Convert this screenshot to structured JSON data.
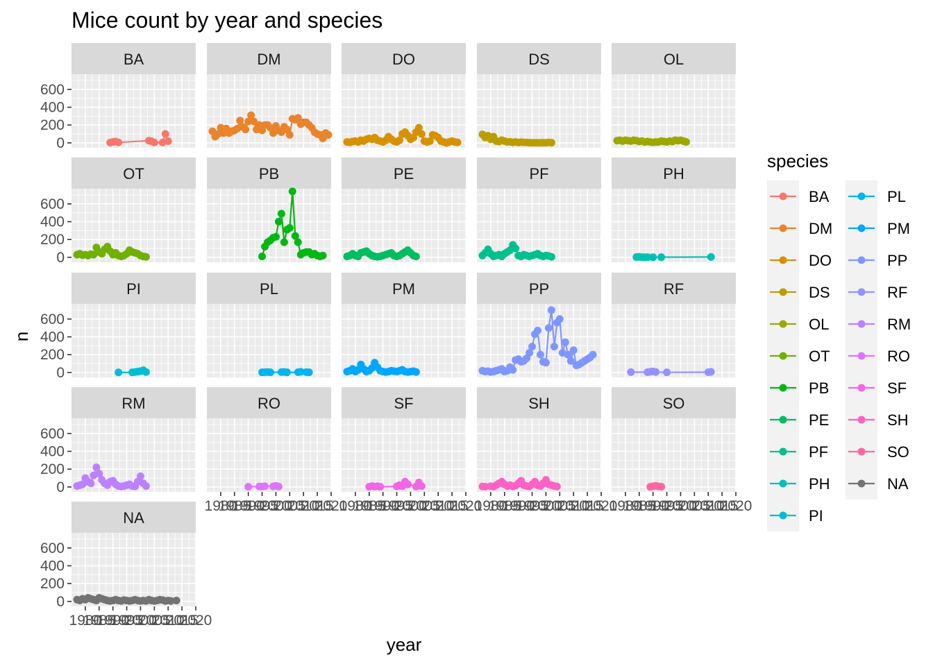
{
  "chart_data": {
    "type": "line",
    "title": "Mice count by year and species",
    "xlabel": "year",
    "ylabel": "n",
    "ylim": [
      -55,
      770
    ],
    "xlim": [
      1975,
      2020
    ],
    "yticks": [
      "0",
      "200",
      "400",
      "600"
    ],
    "xticks": [
      "1980",
      "1985",
      "1990",
      "1995",
      "2000",
      "2005",
      "2010",
      "2015",
      "2020"
    ],
    "legend": {
      "title": "species",
      "position": "right",
      "columns": 2
    },
    "colors": {
      "BA": "#F8766D",
      "DM": "#E9842C",
      "DO": "#D69100",
      "DS": "#BC9D00",
      "OL": "#9CA700",
      "OT": "#6FB000",
      "PB": "#00B813",
      "PE": "#00BD61",
      "PF": "#00C08E",
      "PH": "#00C0B4",
      "PI": "#00BDD4",
      "PL": "#00B5EE",
      "PM": "#00A7FF",
      "PP": "#7F96FF",
      "RF": "#9591FF",
      "RM": "#BC81FF",
      "RO": "#DE73FF",
      "SF": "#F265E7",
      "SH": "#FF61C7",
      "SO": "#FF65A4",
      "NA": "#737373"
    },
    "series": [
      {
        "name": "BA",
        "x": [
          1989,
          1990,
          1991,
          1992,
          2003,
          2004,
          2005,
          2008,
          2009,
          2010
        ],
        "y": [
          3,
          10,
          15,
          5,
          25,
          18,
          4,
          4,
          100,
          19
        ]
      },
      {
        "name": "DM",
        "x": [
          1977,
          1978,
          1979,
          1980,
          1981,
          1982,
          1983,
          1984,
          1985,
          1986,
          1987,
          1988,
          1989,
          1990,
          1991,
          1992,
          1993,
          1994,
          1995,
          1996,
          1997,
          1998,
          1999,
          2000,
          2001,
          2002,
          2003,
          2004,
          2005,
          2006,
          2007,
          2008,
          2009,
          2010,
          2011,
          2012,
          2013,
          2014,
          2015,
          2016,
          2017,
          2018,
          2019
        ],
        "y": [
          130,
          70,
          100,
          170,
          110,
          160,
          110,
          130,
          140,
          160,
          250,
          180,
          150,
          240,
          310,
          240,
          150,
          200,
          140,
          200,
          200,
          170,
          110,
          190,
          140,
          120,
          180,
          150,
          90,
          270,
          260,
          280,
          210,
          230,
          230,
          200,
          170,
          120,
          100,
          90,
          50,
          110,
          90
        ]
      },
      {
        "name": "DO",
        "x": [
          1977,
          1978,
          1979,
          1980,
          1981,
          1982,
          1983,
          1984,
          1985,
          1986,
          1987,
          1988,
          1989,
          1990,
          1991,
          1992,
          1993,
          1994,
          1995,
          1996,
          1997,
          1998,
          1999,
          2000,
          2001,
          2002,
          2003,
          2004,
          2005,
          2006,
          2007,
          2008,
          2009,
          2010,
          2011,
          2012,
          2013,
          2014,
          2015,
          2016,
          2017
        ],
        "y": [
          10,
          5,
          15,
          20,
          10,
          30,
          20,
          40,
          50,
          40,
          60,
          30,
          20,
          10,
          30,
          70,
          40,
          20,
          10,
          30,
          100,
          120,
          80,
          40,
          60,
          120,
          170,
          100,
          20,
          10,
          20,
          90,
          80,
          60,
          20,
          10,
          0,
          10,
          20,
          10,
          5
        ]
      },
      {
        "name": "DS",
        "x": [
          1977,
          1978,
          1979,
          1980,
          1981,
          1982,
          1983,
          1984,
          1985,
          1986,
          1987,
          1988,
          1989,
          1990,
          1991,
          1992,
          1993,
          1994,
          1995,
          1996,
          1997,
          1998,
          1999,
          2000,
          2001,
          2002
        ],
        "y": [
          95,
          60,
          80,
          40,
          70,
          20,
          15,
          30,
          20,
          10,
          12,
          5,
          10,
          3,
          8,
          5,
          4,
          2,
          1,
          1,
          1,
          1,
          2,
          1,
          5,
          2
        ]
      },
      {
        "name": "OL",
        "x": [
          1977,
          1978,
          1979,
          1980,
          1981,
          1982,
          1983,
          1984,
          1985,
          1986,
          1987,
          1988,
          1989,
          1990,
          1991,
          1992,
          1993,
          1994,
          1995,
          1996,
          1997,
          1998,
          1999,
          2000,
          2001,
          2002
        ],
        "y": [
          25,
          30,
          20,
          30,
          25,
          20,
          30,
          25,
          15,
          20,
          10,
          15,
          10,
          5,
          10,
          10,
          20,
          15,
          10,
          20,
          15,
          30,
          25,
          30,
          20,
          10
        ]
      },
      {
        "name": "OT",
        "x": [
          1977,
          1978,
          1979,
          1980,
          1981,
          1982,
          1983,
          1984,
          1985,
          1986,
          1987,
          1988,
          1989,
          1990,
          1991,
          1992,
          1993,
          1994,
          1995,
          1996,
          1997,
          1998,
          1999,
          2000,
          2001,
          2002
        ],
        "y": [
          30,
          40,
          25,
          30,
          20,
          35,
          30,
          110,
          60,
          40,
          90,
          120,
          70,
          30,
          50,
          20,
          10,
          20,
          40,
          80,
          60,
          50,
          40,
          20,
          10,
          5
        ]
      },
      {
        "name": "PB",
        "x": [
          1995,
          1996,
          1997,
          1998,
          1999,
          2000,
          2001,
          2002,
          2003,
          2004,
          2005,
          2006,
          2007,
          2008,
          2009,
          2010,
          2011,
          2012,
          2013,
          2014,
          2015,
          2016,
          2017
        ],
        "y": [
          10,
          120,
          170,
          190,
          220,
          230,
          400,
          490,
          170,
          310,
          330,
          740,
          240,
          170,
          30,
          50,
          60,
          60,
          30,
          40,
          20,
          10,
          20
        ]
      },
      {
        "name": "PE",
        "x": [
          1977,
          1978,
          1979,
          1980,
          1981,
          1982,
          1983,
          1984,
          1985,
          1986,
          1987,
          1988,
          1989,
          1990,
          1991,
          1992,
          1993,
          1994,
          1995,
          1996,
          1997,
          1998,
          1999,
          2000,
          2001,
          2002
        ],
        "y": [
          10,
          20,
          40,
          20,
          10,
          50,
          60,
          70,
          40,
          20,
          10,
          5,
          10,
          20,
          30,
          40,
          50,
          20,
          10,
          20,
          40,
          60,
          80,
          50,
          20,
          10
        ]
      },
      {
        "name": "PF",
        "x": [
          1977,
          1978,
          1979,
          1980,
          1981,
          1982,
          1983,
          1984,
          1985,
          1986,
          1987,
          1988,
          1989,
          1990,
          1991,
          1992,
          1993,
          1994,
          1995,
          1996,
          1997,
          1998,
          1999,
          2000,
          2001,
          2002
        ],
        "y": [
          20,
          50,
          90,
          40,
          10,
          20,
          30,
          10,
          40,
          60,
          80,
          140,
          100,
          20,
          10,
          30,
          20,
          10,
          20,
          30,
          40,
          20,
          10,
          20,
          15,
          5
        ]
      },
      {
        "name": "PH",
        "x": [
          1984,
          1985,
          1986,
          1987,
          1988,
          1990,
          1993,
          2011
        ],
        "y": [
          3,
          5,
          2,
          1,
          2,
          1,
          2,
          4
        ]
      },
      {
        "name": "PI",
        "x": [
          1992,
          1997,
          1998,
          1999,
          2000,
          2001,
          2002
        ],
        "y": [
          1,
          2,
          5,
          10,
          15,
          25,
          5
        ]
      },
      {
        "name": "PL",
        "x": [
          1995,
          1996,
          1997,
          1998,
          2002,
          2003,
          2004,
          2008,
          2009,
          2011,
          2012
        ],
        "y": [
          2,
          3,
          5,
          2,
          4,
          6,
          2,
          3,
          8,
          4,
          2
        ]
      },
      {
        "name": "PM",
        "x": [
          1977,
          1978,
          1979,
          1980,
          1981,
          1982,
          1983,
          1984,
          1985,
          1986,
          1987,
          1988,
          1989,
          1990,
          1991,
          1992,
          1993,
          1994,
          1995,
          1996,
          1997,
          1998,
          1999,
          2000,
          2001,
          2002
        ],
        "y": [
          10,
          20,
          40,
          10,
          30,
          90,
          40,
          10,
          20,
          50,
          110,
          60,
          20,
          10,
          5,
          10,
          20,
          15,
          10,
          20,
          30,
          10,
          5,
          10,
          15,
          5
        ]
      },
      {
        "name": "PP",
        "x": [
          1977,
          1978,
          1979,
          1980,
          1981,
          1982,
          1983,
          1984,
          1985,
          1986,
          1987,
          1988,
          1989,
          1990,
          1991,
          1992,
          1993,
          1994,
          1995,
          1996,
          1997,
          1998,
          1999,
          2000,
          2001,
          2002,
          2003,
          2004,
          2005,
          2006,
          2007,
          2008,
          2009,
          2010,
          2011,
          2012,
          2013,
          2014,
          2015,
          2016,
          2017
        ],
        "y": [
          20,
          10,
          15,
          5,
          10,
          20,
          30,
          40,
          10,
          20,
          60,
          30,
          140,
          150,
          120,
          130,
          160,
          220,
          290,
          430,
          470,
          200,
          120,
          110,
          500,
          700,
          290,
          560,
          600,
          220,
          340,
          200,
          130,
          250,
          80,
          90,
          110,
          130,
          150,
          170,
          200
        ]
      },
      {
        "name": "RF",
        "x": [
          1982,
          1988,
          1989,
          1990,
          1991,
          1995,
          2010,
          2011
        ],
        "y": [
          4,
          3,
          8,
          12,
          5,
          2,
          3,
          7
        ]
      },
      {
        "name": "RM",
        "x": [
          1977,
          1978,
          1979,
          1980,
          1981,
          1982,
          1983,
          1984,
          1985,
          1986,
          1987,
          1988,
          1989,
          1990,
          1991,
          1992,
          1993,
          1994,
          1995,
          1996,
          1997,
          1998,
          1999,
          2000,
          2001,
          2002
        ],
        "y": [
          10,
          20,
          30,
          100,
          60,
          40,
          130,
          220,
          150,
          80,
          40,
          20,
          60,
          70,
          30,
          10,
          5,
          10,
          20,
          30,
          10,
          5,
          60,
          120,
          40,
          10
        ]
      },
      {
        "name": "RO",
        "x": [
          1990,
          1994,
          1995,
          1996,
          1999,
          2000,
          2001
        ],
        "y": [
          2,
          5,
          3,
          8,
          6,
          12,
          4
        ]
      },
      {
        "name": "SF",
        "x": [
          1985,
          1986,
          1987,
          1988,
          1989,
          1995,
          1996,
          1997,
          1998,
          1999,
          2002,
          2003,
          2004
        ],
        "y": [
          2,
          10,
          4,
          8,
          2,
          6,
          20,
          8,
          60,
          30,
          4,
          50,
          10
        ]
      },
      {
        "name": "SH",
        "x": [
          1977,
          1978,
          1980,
          1981,
          1982,
          1983,
          1984,
          1985,
          1986,
          1987,
          1988,
          1989,
          1990,
          1991,
          1992,
          1993,
          1994,
          1995,
          1996,
          1997,
          1998,
          1999,
          2000,
          2001,
          2002,
          2003,
          2004
        ],
        "y": [
          5,
          3,
          8,
          4,
          20,
          40,
          60,
          30,
          10,
          20,
          5,
          15,
          40,
          70,
          20,
          10,
          5,
          30,
          60,
          20,
          10,
          40,
          80,
          30,
          20,
          10,
          5
        ]
      },
      {
        "name": "SO",
        "x": [
          1989,
          1990,
          1991,
          1992,
          1993
        ],
        "y": [
          2,
          8,
          12,
          6,
          3
        ]
      },
      {
        "name": "NA",
        "x": [
          1977,
          1978,
          1979,
          1980,
          1981,
          1982,
          1983,
          1984,
          1985,
          1986,
          1987,
          1988,
          1989,
          1990,
          1991,
          1992,
          1993,
          1994,
          1995,
          1996,
          1997,
          1998,
          1999,
          2000,
          2001,
          2002,
          2003,
          2004,
          2005,
          2006,
          2007,
          2008,
          2009,
          2010,
          2011,
          2013
        ],
        "y": [
          20,
          10,
          30,
          20,
          40,
          30,
          20,
          10,
          40,
          30,
          20,
          10,
          5,
          10,
          20,
          10,
          5,
          15,
          10,
          5,
          10,
          20,
          10,
          5,
          10,
          5,
          20,
          10,
          5,
          10,
          20,
          15,
          5,
          10,
          5,
          10
        ]
      }
    ]
  }
}
